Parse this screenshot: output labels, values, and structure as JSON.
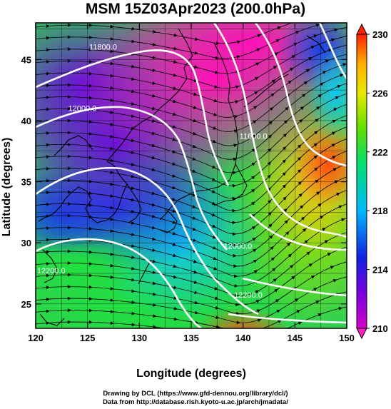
{
  "title": "MSM 15Z03Apr2023 (200.0hPa)",
  "x_axis": {
    "label": "Longitude (degrees)",
    "range": [
      120,
      150
    ],
    "ticks": [
      "120",
      "125",
      "130",
      "135",
      "140",
      "145",
      "150"
    ]
  },
  "y_axis": {
    "label": "Latitude  (degrees)",
    "range": [
      23,
      48
    ],
    "ticks": [
      "25",
      "30",
      "35",
      "40",
      "45"
    ]
  },
  "colorbar": {
    "range": [
      210,
      230
    ],
    "ticks": [
      "210",
      "214",
      "218",
      "222",
      "226",
      "230"
    ],
    "colors": [
      "#d400c8",
      "#7a00e0",
      "#1020e0",
      "#00b8ff",
      "#00e070",
      "#60e000",
      "#e8e800",
      "#ffb000",
      "#ff2000"
    ]
  },
  "contour_labels": [
    {
      "text": "11800.0",
      "lon": 126.5,
      "lat": 45.8
    },
    {
      "text": "12000.0",
      "lon": 124.5,
      "lat": 40.8
    },
    {
      "text": "11600.0",
      "lon": 141.0,
      "lat": 38.5
    },
    {
      "text": "12000.0",
      "lon": 139.5,
      "lat": 29.5
    },
    {
      "text": "12200.0",
      "lon": 121.5,
      "lat": 27.5
    },
    {
      "text": "12200.0",
      "lon": 140.5,
      "lat": 25.5
    }
  ],
  "credits": {
    "line1": "Drawing by DCL (https://www.gfd-dennou.org/library/dcl/)",
    "line2": "Data from http://database.rish.kyoto-u.ac.jp/arch/jmadata/"
  }
}
